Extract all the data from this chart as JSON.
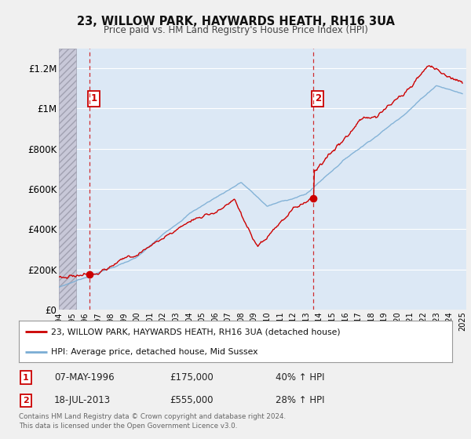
{
  "title": "23, WILLOW PARK, HAYWARDS HEATH, RH16 3UA",
  "subtitle": "Price paid vs. HM Land Registry's House Price Index (HPI)",
  "ylim": [
    0,
    1300000
  ],
  "yticks": [
    0,
    200000,
    400000,
    600000,
    800000,
    1000000,
    1200000
  ],
  "ytick_labels": [
    "£0",
    "£200K",
    "£400K",
    "£600K",
    "£800K",
    "£1M",
    "£1.2M"
  ],
  "xlim_start": 1994.0,
  "xlim_end": 2025.3,
  "sale1_x": 1996.35,
  "sale1_y": 175000,
  "sale1_label": "1",
  "sale1_date": "07-MAY-1996",
  "sale1_price": "£175,000",
  "sale1_hpi": "40% ↑ HPI",
  "sale2_x": 2013.54,
  "sale2_y": 555000,
  "sale2_label": "2",
  "sale2_date": "18-JUL-2013",
  "sale2_price": "£555,000",
  "sale2_hpi": "28% ↑ HPI",
  "price_color": "#cc0000",
  "hpi_color": "#7aadd4",
  "legend_label_price": "23, WILLOW PARK, HAYWARDS HEATH, RH16 3UA (detached house)",
  "legend_label_hpi": "HPI: Average price, detached house, Mid Sussex",
  "footer": "Contains HM Land Registry data © Crown copyright and database right 2024.\nThis data is licensed under the Open Government Licence v3.0.",
  "background_color": "#f0f0f0",
  "plot_bg_color": "#dce8f5",
  "hatch_bg_color": "#c8c8d8"
}
